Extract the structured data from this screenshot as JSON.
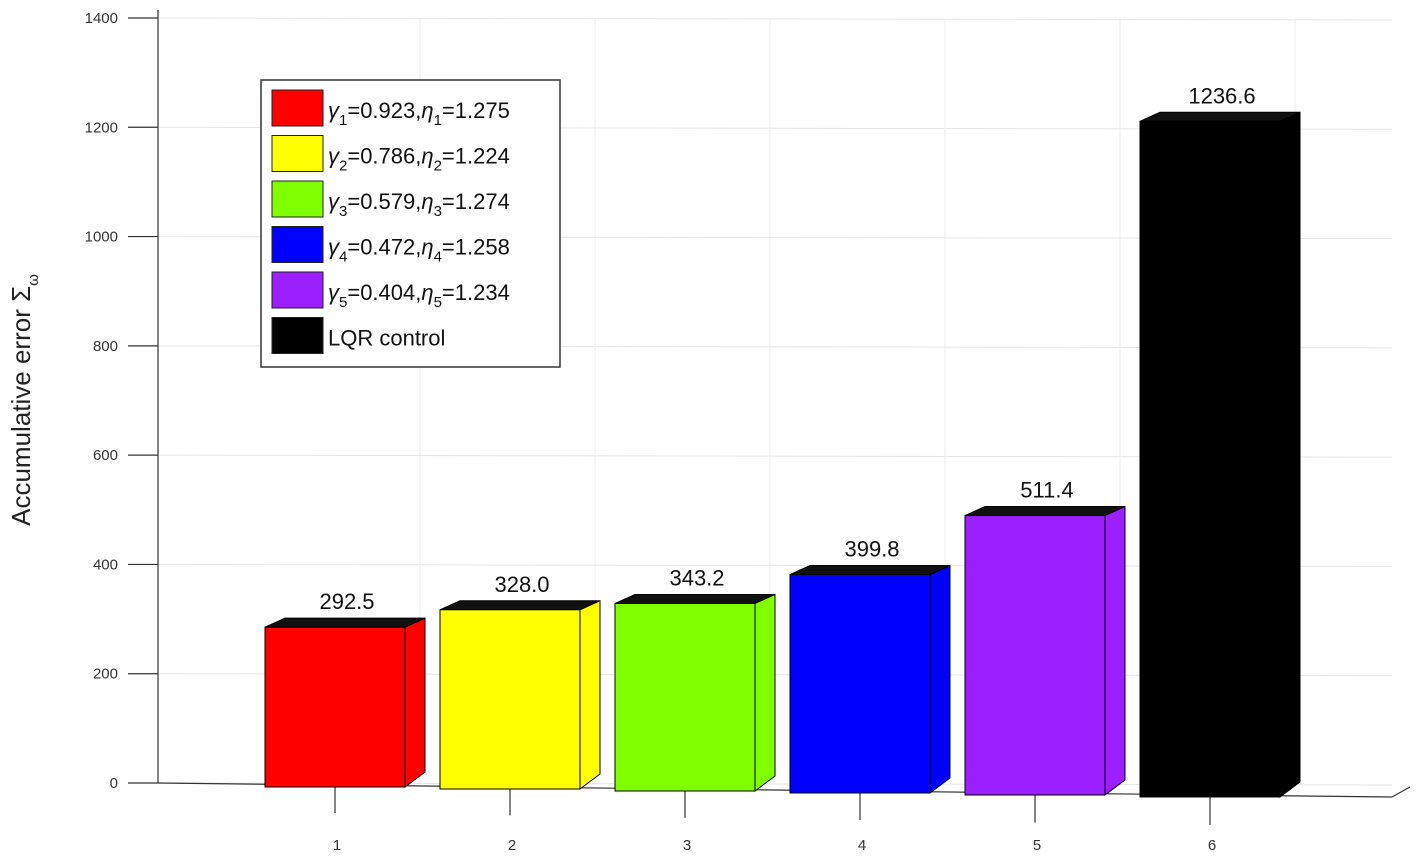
{
  "chart_data": {
    "type": "bar",
    "style": "3d-bar",
    "categories": [
      "1",
      "2",
      "3",
      "4",
      "5",
      "6"
    ],
    "values": [
      292.5,
      328.0,
      343.2,
      399.8,
      511.4,
      1236.6
    ],
    "data_labels": [
      "292.5",
      "328.0",
      "343.2",
      "399.8",
      "511.4",
      "1236.6"
    ],
    "colors": [
      "#ff0000",
      "#ffff00",
      "#80ff00",
      "#0000ff",
      "#9b1fff",
      "#000000"
    ],
    "xlabel": "",
    "ylabel": "Accumulative error Σ",
    "ylabel_sub": "ω",
    "ylim": [
      0,
      1400
    ],
    "yticks": [
      0,
      200,
      400,
      600,
      800,
      1000,
      1200,
      1400
    ],
    "grid": true,
    "legend_position": "top-left",
    "legend": [
      {
        "g": "γ",
        "gi": "1",
        "gv": "=0.923,",
        "e": "η",
        "ei": "1",
        "ev": "=1.275"
      },
      {
        "g": "γ",
        "gi": "2",
        "gv": "=0.786,",
        "e": "η",
        "ei": "2",
        "ev": "=1.224"
      },
      {
        "g": "γ",
        "gi": "3",
        "gv": "=0.579,",
        "e": "η",
        "ei": "3",
        "ev": "=1.274"
      },
      {
        "g": "γ",
        "gi": "4",
        "gv": "=0.472,",
        "e": "η",
        "ei": "4",
        "ev": "=1.258"
      },
      {
        "g": "γ",
        "gi": "5",
        "gv": "=0.404,",
        "e": "η",
        "ei": "5",
        "ev": "=1.234"
      },
      {
        "text": "LQR control"
      }
    ]
  }
}
